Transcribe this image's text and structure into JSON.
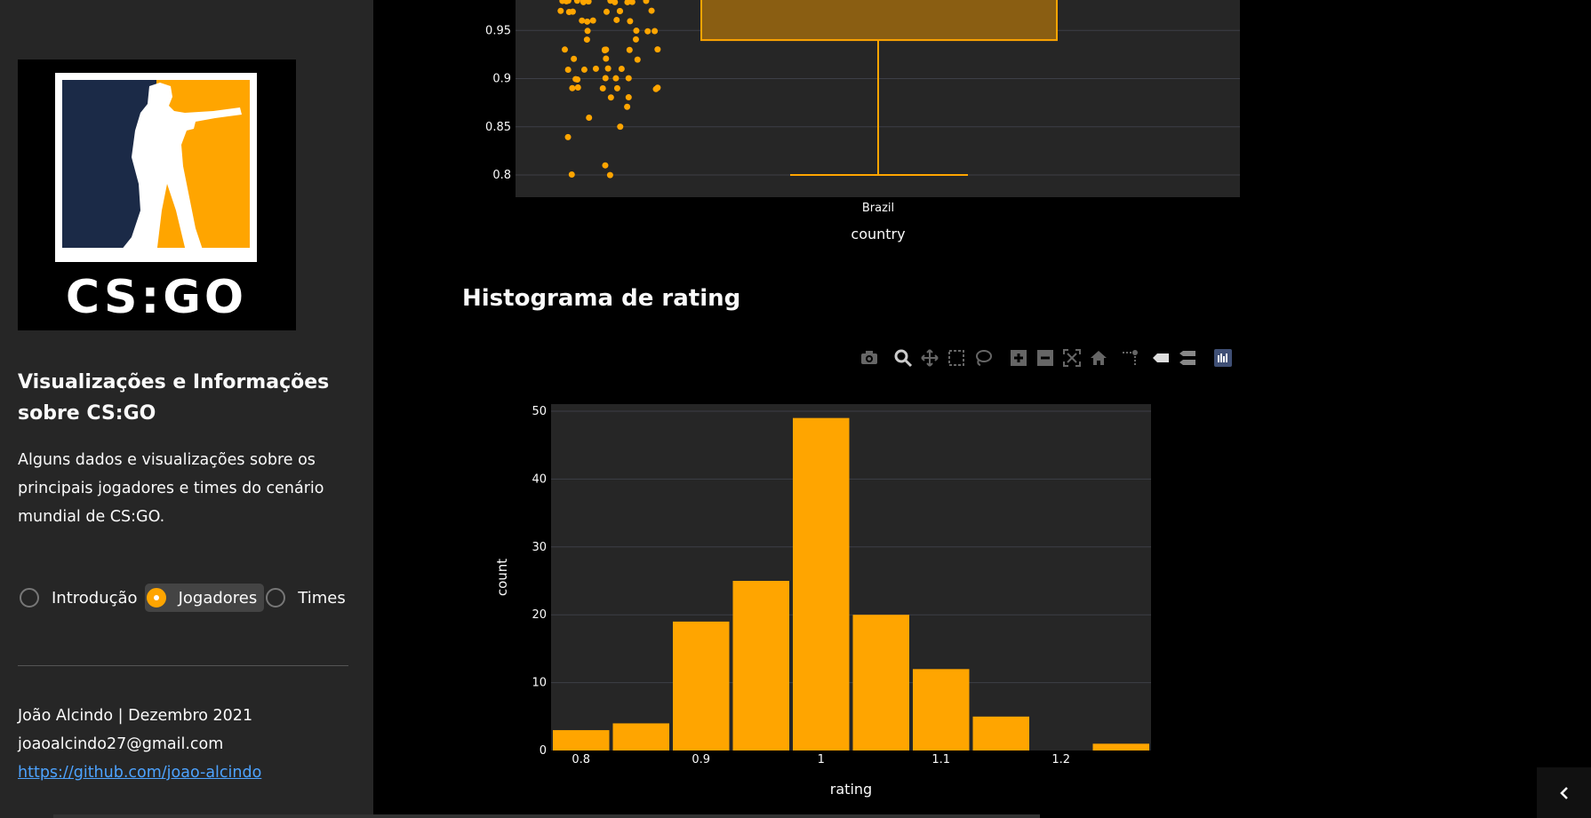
{
  "sidebar": {
    "logo_text": "CS:GO",
    "title": "Visualizações e Informações sobre CS:GO",
    "description": "Alguns dados e visualizações sobre os principais jogadores e times do cenário mundial de CS:GO.",
    "nav": [
      {
        "label": "Introdução",
        "selected": false
      },
      {
        "label": "Jogadores",
        "selected": true
      },
      {
        "label": "Times",
        "selected": false
      }
    ],
    "footer": {
      "author_date": "João Alcindo | Dezembro 2021",
      "email": "joaoalcindo27@gmail.com",
      "github": "https://github.com/joao-alcindo"
    }
  },
  "colors": {
    "sidebar_bg": "#262626",
    "plot_bg": "#262626",
    "accent": "#ffa500",
    "link": "#4da3ff"
  },
  "toolbar_icons": [
    "camera-icon",
    "zoom-icon",
    "pan-icon",
    "box-select-icon",
    "lasso-select-icon",
    "zoom-in-icon",
    "zoom-out-icon",
    "autoscale-icon",
    "reset-axes-icon",
    "spike-lines-icon",
    "hover-closest-icon",
    "hover-compare-icon",
    "plotly-logo-icon"
  ],
  "sections": {
    "histogram_title": "Histograma de rating"
  },
  "chart_data": [
    {
      "type": "box",
      "xlabel": "country",
      "categories": [
        "Brazil"
      ],
      "y_ticks": [
        "0.8",
        "0.85",
        "0.9",
        "0.95"
      ],
      "ylim": [
        0.777,
        1.0
      ],
      "box": {
        "lower_whisker": 0.8,
        "q1": 0.94
      },
      "points_y": [
        0.8,
        0.8,
        0.81,
        0.84,
        0.85,
        0.86,
        0.87,
        0.88,
        0.88,
        0.89,
        0.89,
        0.89,
        0.89,
        0.89,
        0.89,
        0.9,
        0.9,
        0.9,
        0.9,
        0.9,
        0.91,
        0.91,
        0.91,
        0.91,
        0.91,
        0.92,
        0.92,
        0.92,
        0.93,
        0.93,
        0.93,
        0.93,
        0.93,
        0.93,
        0.94,
        0.94,
        0.95,
        0.95,
        0.95,
        0.95,
        0.96,
        0.96,
        0.96,
        0.96,
        0.96,
        0.97,
        0.97,
        0.97,
        0.97,
        0.97,
        0.97,
        0.97,
        0.98,
        0.98,
        0.98,
        0.98,
        0.98,
        0.98,
        0.98,
        0.98,
        0.98,
        0.98,
        0.98,
        0.98,
        0.99,
        0.99,
        0.99,
        0.99,
        0.99,
        0.99,
        0.99
      ]
    },
    {
      "type": "bar",
      "title": "",
      "xlabel": "rating",
      "ylabel": "count",
      "bin_start": 0.775,
      "bin_width": 0.05,
      "categories": [
        "0.775-0.825",
        "0.825-0.875",
        "0.875-0.925",
        "0.925-0.975",
        "0.975-1.025",
        "1.025-1.075",
        "1.075-1.125",
        "1.125-1.175",
        "1.175-1.225",
        "1.225-1.275"
      ],
      "values": [
        3,
        4,
        19,
        25,
        49,
        20,
        12,
        5,
        0,
        1
      ],
      "x_ticks": [
        "0.8",
        "0.9",
        "1",
        "1.1",
        "1.2"
      ],
      "y_ticks": [
        "0",
        "10",
        "20",
        "30",
        "40",
        "50"
      ],
      "xlim": [
        0.775,
        1.275
      ],
      "ylim": [
        0,
        50
      ],
      "color": "#ffa500"
    }
  ]
}
